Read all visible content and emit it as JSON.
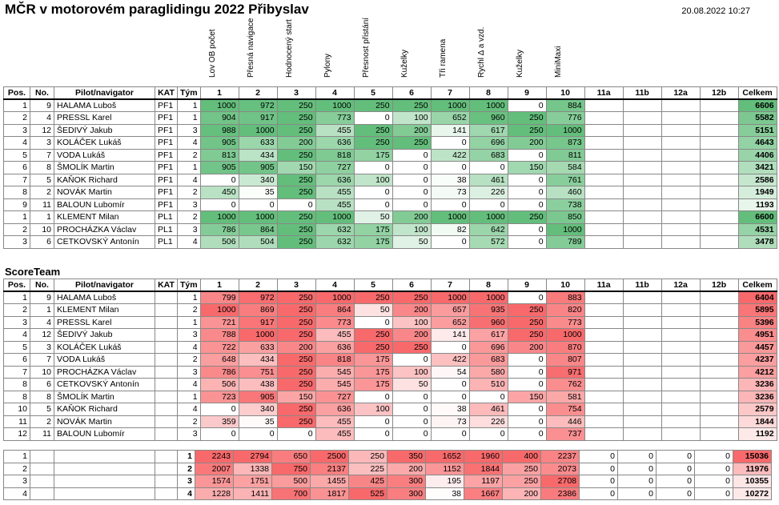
{
  "header": {
    "title": "MČR v motorovém paraglidingu 2022 Přibyslav",
    "datetime": "20.08.2022 10:27",
    "score_team_title": "ScoreTeam"
  },
  "disciplines": [
    "Lov OB počet",
    "Přesná navigace",
    "Hodnocený start",
    "Pylony",
    "Přesnost přistání",
    "Kuželky",
    "Tři ramena",
    "Rychl Δ a vzd.",
    "Kuželky",
    "MiniMaxi"
  ],
  "columns": [
    "Pos.",
    "No.",
    "Pilot/navigator",
    "KAT",
    "Tým",
    "1",
    "2",
    "3",
    "4",
    "5",
    "6",
    "7",
    "8",
    "9",
    "10",
    "11a",
    "11b",
    "12a",
    "12b",
    "Celkem"
  ],
  "palette": {
    "green": "#63be7b",
    "red": "#f8696b",
    "white": "#ffffff"
  },
  "individual": [
    {
      "pos": "1",
      "no": "9",
      "pilot": "HALAMA Luboš",
      "kat": "PF1",
      "tym": "1",
      "s": [
        1000,
        972,
        250,
        1000,
        250,
        250,
        1000,
        1000,
        0,
        884
      ],
      "total": "6606"
    },
    {
      "pos": "2",
      "no": "4",
      "pilot": "PRESSL Karel",
      "kat": "PF1",
      "tym": "1",
      "s": [
        904,
        917,
        250,
        773,
        0,
        100,
        652,
        960,
        250,
        776
      ],
      "total": "5582"
    },
    {
      "pos": "3",
      "no": "12",
      "pilot": "ŠEDIVÝ Jakub",
      "kat": "PF1",
      "tym": "3",
      "s": [
        988,
        1000,
        250,
        455,
        250,
        200,
        141,
        617,
        250,
        1000
      ],
      "total": "5151"
    },
    {
      "pos": "4",
      "no": "3",
      "pilot": "KOLÁČEK Lukáš",
      "kat": "PF1",
      "tym": "4",
      "s": [
        905,
        633,
        200,
        636,
        250,
        250,
        0,
        696,
        200,
        873
      ],
      "total": "4643"
    },
    {
      "pos": "5",
      "no": "7",
      "pilot": "VODA Lukáš",
      "kat": "PF1",
      "tym": "2",
      "s": [
        813,
        434,
        250,
        818,
        175,
        0,
        422,
        683,
        0,
        811
      ],
      "total": "4406"
    },
    {
      "pos": "6",
      "no": "8",
      "pilot": "ŠMOLÍK Martin",
      "kat": "PF1",
      "tym": "1",
      "s": [
        905,
        905,
        150,
        727,
        0,
        0,
        0,
        0,
        150,
        584
      ],
      "total": "3421"
    },
    {
      "pos": "7",
      "no": "5",
      "pilot": "KAŇOK Richard",
      "kat": "PF1",
      "tym": "4",
      "s": [
        0,
        340,
        250,
        636,
        100,
        0,
        38,
        461,
        0,
        761
      ],
      "total": "2586"
    },
    {
      "pos": "8",
      "no": "2",
      "pilot": "NOVÁK Martin",
      "kat": "PF1",
      "tym": "2",
      "s": [
        450,
        35,
        250,
        455,
        0,
        0,
        73,
        226,
        0,
        460
      ],
      "total": "1949"
    },
    {
      "pos": "9",
      "no": "11",
      "pilot": "BALOUN Lubomír",
      "kat": "PF1",
      "tym": "3",
      "s": [
        0,
        0,
        0,
        455,
        0,
        0,
        0,
        0,
        0,
        738
      ],
      "total": "1193"
    },
    {
      "pos": "1",
      "no": "1",
      "pilot": "KLEMENT Milan",
      "kat": "PL1",
      "tym": "2",
      "s": [
        1000,
        1000,
        250,
        1000,
        50,
        200,
        1000,
        1000,
        250,
        850
      ],
      "total": "6600"
    },
    {
      "pos": "2",
      "no": "10",
      "pilot": "PROCHÁZKA Václav",
      "kat": "PL1",
      "tym": "3",
      "s": [
        786,
        864,
        250,
        632,
        175,
        100,
        82,
        642,
        0,
        1000
      ],
      "total": "4531"
    },
    {
      "pos": "3",
      "no": "6",
      "pilot": "CETKOVSKÝ Antonín",
      "kat": "PL1",
      "tym": "4",
      "s": [
        506,
        504,
        250,
        632,
        175,
        50,
        0,
        572,
        0,
        789
      ],
      "total": "3478"
    }
  ],
  "scoreteam": [
    {
      "pos": "1",
      "no": "9",
      "pilot": "HALAMA Luboš",
      "kat": "",
      "tym": "1",
      "s": [
        799,
        972,
        250,
        1000,
        250,
        250,
        1000,
        1000,
        0,
        883
      ],
      "total": "6404"
    },
    {
      "pos": "2",
      "no": "1",
      "pilot": "KLEMENT Milan",
      "kat": "",
      "tym": "2",
      "s": [
        1000,
        869,
        250,
        864,
        50,
        200,
        657,
        935,
        250,
        820
      ],
      "total": "5895"
    },
    {
      "pos": "3",
      "no": "4",
      "pilot": "PRESSL Karel",
      "kat": "",
      "tym": "1",
      "s": [
        721,
        917,
        250,
        773,
        0,
        100,
        652,
        960,
        250,
        773
      ],
      "total": "5396"
    },
    {
      "pos": "4",
      "no": "12",
      "pilot": "ŠEDIVÝ Jakub",
      "kat": "",
      "tym": "3",
      "s": [
        788,
        1000,
        250,
        455,
        250,
        200,
        141,
        617,
        250,
        1000
      ],
      "total": "4951"
    },
    {
      "pos": "5",
      "no": "3",
      "pilot": "KOLÁČEK Lukáš",
      "kat": "",
      "tym": "4",
      "s": [
        722,
        633,
        200,
        636,
        250,
        250,
        0,
        696,
        200,
        870
      ],
      "total": "4457"
    },
    {
      "pos": "6",
      "no": "7",
      "pilot": "VODA Lukáš",
      "kat": "",
      "tym": "2",
      "s": [
        648,
        434,
        250,
        818,
        175,
        0,
        422,
        683,
        0,
        807
      ],
      "total": "4237"
    },
    {
      "pos": "7",
      "no": "10",
      "pilot": "PROCHÁZKA Václav",
      "kat": "",
      "tym": "3",
      "s": [
        786,
        751,
        250,
        545,
        175,
        100,
        54,
        580,
        0,
        971
      ],
      "total": "4212"
    },
    {
      "pos": "8",
      "no": "6",
      "pilot": "CETKOVSKÝ Antonín",
      "kat": "",
      "tym": "4",
      "s": [
        506,
        438,
        250,
        545,
        175,
        50,
        0,
        510,
        0,
        762
      ],
      "total": "3236"
    },
    {
      "pos": "8",
      "no": "8",
      "pilot": "ŠMOLÍK Martin",
      "kat": "",
      "tym": "1",
      "s": [
        723,
        905,
        150,
        727,
        0,
        0,
        0,
        0,
        150,
        581
      ],
      "total": "3236"
    },
    {
      "pos": "10",
      "no": "5",
      "pilot": "KAŇOK Richard",
      "kat": "",
      "tym": "4",
      "s": [
        0,
        340,
        250,
        636,
        100,
        0,
        38,
        461,
        0,
        754
      ],
      "total": "2579"
    },
    {
      "pos": "11",
      "no": "2",
      "pilot": "NOVÁK Martin",
      "kat": "",
      "tym": "2",
      "s": [
        359,
        35,
        250,
        455,
        0,
        0,
        73,
        226,
        0,
        446
      ],
      "total": "1844"
    },
    {
      "pos": "12",
      "no": "11",
      "pilot": "BALOUN Lubomír",
      "kat": "",
      "tym": "3",
      "s": [
        0,
        0,
        0,
        455,
        0,
        0,
        0,
        0,
        0,
        737
      ],
      "total": "1192"
    }
  ],
  "teams": [
    {
      "pos": "1",
      "tym": "1",
      "s": [
        2243,
        2794,
        650,
        2500,
        250,
        350,
        1652,
        1960,
        400,
        2237
      ],
      "extra": [
        0,
        0,
        0,
        0
      ],
      "total": "15036"
    },
    {
      "pos": "2",
      "tym": "2",
      "s": [
        2007,
        1338,
        750,
        2137,
        225,
        200,
        1152,
        1844,
        250,
        2073
      ],
      "extra": [
        0,
        0,
        0,
        0
      ],
      "total": "11976"
    },
    {
      "pos": "3",
      "tym": "3",
      "s": [
        1574,
        1751,
        500,
        1455,
        425,
        300,
        195,
        1197,
        250,
        2708
      ],
      "extra": [
        0,
        0,
        0,
        0
      ],
      "total": "10355"
    },
    {
      "pos": "4",
      "tym": "4",
      "s": [
        1228,
        1411,
        700,
        1817,
        525,
        300,
        38,
        1667,
        200,
        2386
      ],
      "extra": [
        0,
        0,
        0,
        0
      ],
      "total": "10272"
    }
  ]
}
